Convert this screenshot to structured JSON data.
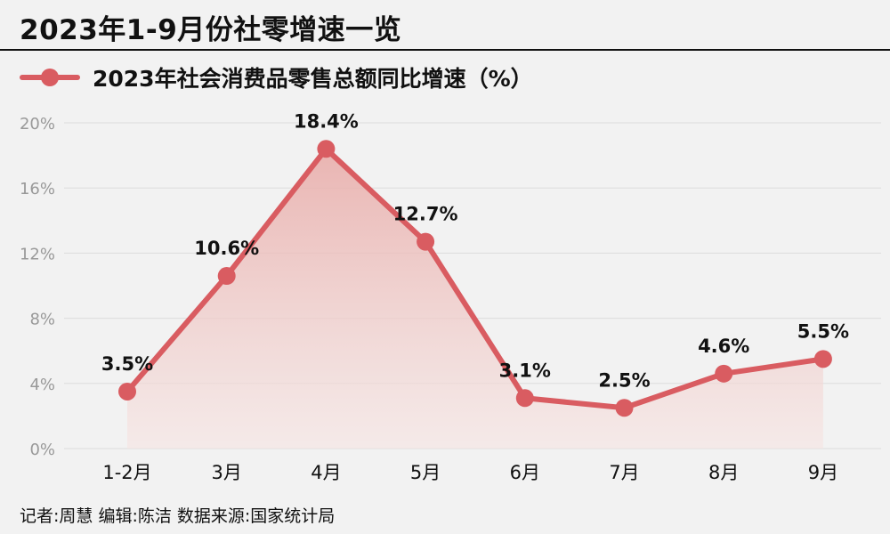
{
  "title": "2023年1-9月份社零增速一览",
  "footer": "记者:周慧   编辑:陈洁   数据来源:国家统计局",
  "chart_data": {
    "type": "line",
    "legend": "2023年社会消费品零售总额同比增速（%）",
    "legend_position": "top-left",
    "categories": [
      "1-2月",
      "3月",
      "4月",
      "5月",
      "6月",
      "7月",
      "8月",
      "9月"
    ],
    "series": [
      {
        "name": "2023年社会消费品零售总额同比增速（%）",
        "values": [
          3.5,
          10.6,
          18.4,
          12.7,
          3.1,
          2.5,
          4.6,
          5.5
        ],
        "labels": [
          "3.5%",
          "10.6%",
          "18.4%",
          "12.7%",
          "3.1%",
          "2.5%",
          "4.6%",
          "5.5%"
        ]
      }
    ],
    "yticks": [
      0,
      4,
      8,
      12,
      16,
      20
    ],
    "ytick_labels": [
      "0%",
      "4%",
      "8%",
      "12%",
      "16%",
      "20%"
    ],
    "ylim": [
      0,
      20
    ],
    "grid": true,
    "colors": {
      "line": "#d95c61",
      "grid": "#dcdcdc",
      "tick": "#999999"
    }
  }
}
